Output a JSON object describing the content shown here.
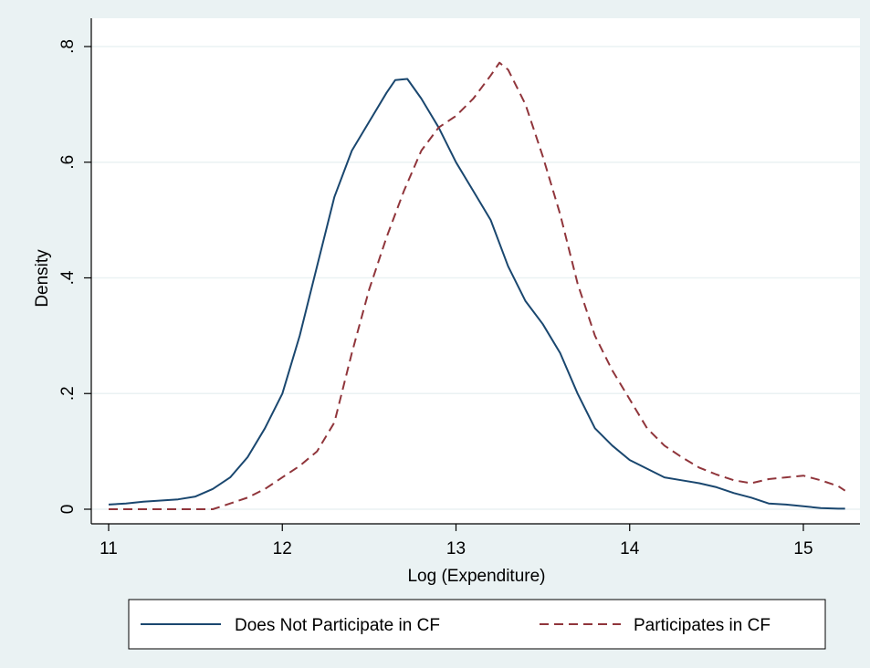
{
  "chart_data": {
    "type": "line",
    "title": "",
    "xlabel": "Log (Expenditure)",
    "ylabel": "Density",
    "xlim": [
      10.95,
      15.25
    ],
    "ylim": [
      0,
      0.8
    ],
    "x_ticks": [
      11,
      12,
      13,
      14,
      15
    ],
    "x_tick_labels": [
      "11",
      "12",
      "13",
      "14",
      "15"
    ],
    "y_ticks": [
      0,
      0.2,
      0.4,
      0.6,
      0.8
    ],
    "y_tick_labels": [
      "0",
      ".2",
      ".4",
      ".6",
      ".8"
    ],
    "grid": "horizontal",
    "legend_position": "bottom",
    "series": [
      {
        "name": "Does Not Participate in CF",
        "color": "#1a476f",
        "style": "solid",
        "x": [
          11.0,
          11.1,
          11.2,
          11.3,
          11.4,
          11.5,
          11.6,
          11.7,
          11.8,
          11.9,
          12.0,
          12.1,
          12.2,
          12.3,
          12.4,
          12.5,
          12.6,
          12.65,
          12.72,
          12.8,
          12.9,
          13.0,
          13.1,
          13.2,
          13.3,
          13.4,
          13.5,
          13.6,
          13.7,
          13.8,
          13.9,
          14.0,
          14.1,
          14.2,
          14.3,
          14.4,
          14.5,
          14.6,
          14.7,
          14.8,
          14.9,
          15.0,
          15.1,
          15.2,
          15.24
        ],
        "values": [
          0.008,
          0.01,
          0.013,
          0.015,
          0.017,
          0.022,
          0.035,
          0.055,
          0.09,
          0.14,
          0.2,
          0.3,
          0.42,
          0.54,
          0.62,
          0.67,
          0.72,
          0.742,
          0.744,
          0.71,
          0.66,
          0.6,
          0.55,
          0.5,
          0.42,
          0.36,
          0.32,
          0.27,
          0.2,
          0.14,
          0.11,
          0.085,
          0.07,
          0.055,
          0.05,
          0.045,
          0.038,
          0.028,
          0.02,
          0.01,
          0.008,
          0.005,
          0.002,
          0.001,
          0.001
        ]
      },
      {
        "name": "Participates in CF",
        "color": "#90353b",
        "style": "dashed",
        "x": [
          11.0,
          11.2,
          11.4,
          11.6,
          11.7,
          11.8,
          11.9,
          12.0,
          12.1,
          12.2,
          12.3,
          12.4,
          12.5,
          12.6,
          12.7,
          12.8,
          12.9,
          13.0,
          13.1,
          13.2,
          13.25,
          13.3,
          13.4,
          13.5,
          13.6,
          13.7,
          13.8,
          13.9,
          14.0,
          14.1,
          14.2,
          14.3,
          14.4,
          14.5,
          14.6,
          14.7,
          14.8,
          14.9,
          15.0,
          15.1,
          15.2,
          15.24
        ],
        "values": [
          0.0,
          0.0,
          0.0,
          0.0,
          0.01,
          0.02,
          0.035,
          0.055,
          0.075,
          0.1,
          0.15,
          0.27,
          0.38,
          0.47,
          0.55,
          0.62,
          0.66,
          0.68,
          0.71,
          0.75,
          0.772,
          0.76,
          0.7,
          0.61,
          0.51,
          0.39,
          0.3,
          0.24,
          0.19,
          0.14,
          0.11,
          0.09,
          0.072,
          0.06,
          0.05,
          0.045,
          0.052,
          0.055,
          0.058,
          0.05,
          0.04,
          0.032
        ]
      }
    ]
  }
}
